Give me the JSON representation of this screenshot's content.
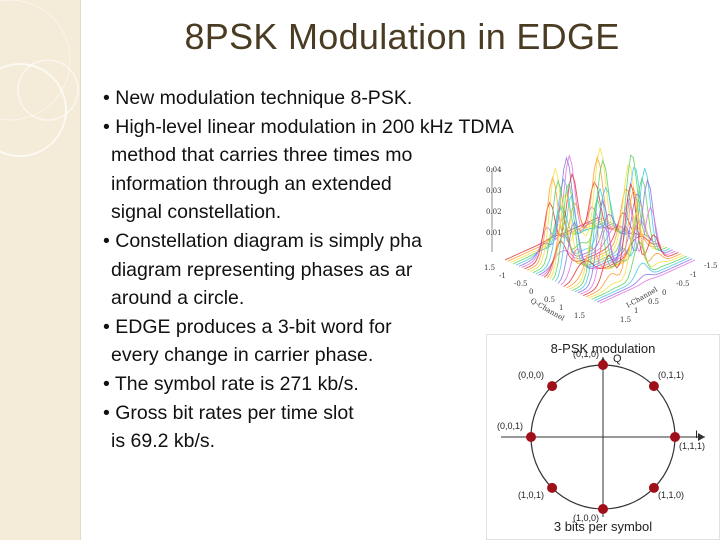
{
  "slide": {
    "title": "8PSK Modulation in EDGE",
    "bullets": [
      {
        "lines": [
          "• New modulation technique 8-PSK."
        ]
      },
      {
        "lines": [
          "• High-level linear modulation in 200 kHz TDMA",
          "method that carries three times mo",
          "information through an extended",
          "signal constellation."
        ]
      },
      {
        "lines": [
          "• Constellation diagram is simply pha",
          "diagram representing phases as ar",
          "around a circle."
        ]
      },
      {
        "lines": [
          "• EDGE produces a 3-bit word for",
          "every change in carrier phase."
        ]
      },
      {
        "lines": [
          "• The symbol rate is 271 kb/s."
        ]
      },
      {
        "lines": [
          "• Gross bit rates per time slot",
          "is 69.2 kb/s."
        ]
      }
    ]
  },
  "surface_plot": {
    "z_ticks": [
      "0.04",
      "0.03",
      "0.02",
      "0.01"
    ],
    "left_axis_ticks": [
      "1.5",
      "-1",
      "-0.5",
      "0",
      "0.5",
      "1",
      "1.5"
    ],
    "right_axis_ticks": [
      "-1.5",
      "-1",
      "-0.5",
      "0",
      "0.5",
      "1",
      "1.5"
    ],
    "left_axis_label": "Q-Channel",
    "right_axis_label": "I-Channel",
    "colors": [
      "#e03030",
      "#ff9a30",
      "#f2e040",
      "#5ad05a",
      "#3fc8e0",
      "#8a70e0",
      "#e070e0"
    ]
  },
  "constellation": {
    "title": "8-PSK modulation",
    "footer": "3 bits per symbol",
    "q_axis": "Q",
    "i_axis": "I",
    "point_color": "#a0101a",
    "points": [
      {
        "label": "(0,1,0)",
        "angle_deg": 90
      },
      {
        "label": "(0,1,1)",
        "angle_deg": 45
      },
      {
        "label": "(1,1,1)",
        "angle_deg": 0
      },
      {
        "label": "(1,1,0)",
        "angle_deg": -45
      },
      {
        "label": "(1,0,0)",
        "angle_deg": -90
      },
      {
        "label": "(1,0,1)",
        "angle_deg": -135
      },
      {
        "label": "(0,0,1)",
        "angle_deg": 180
      },
      {
        "label": "(0,0,0)",
        "angle_deg": 135
      }
    ]
  }
}
